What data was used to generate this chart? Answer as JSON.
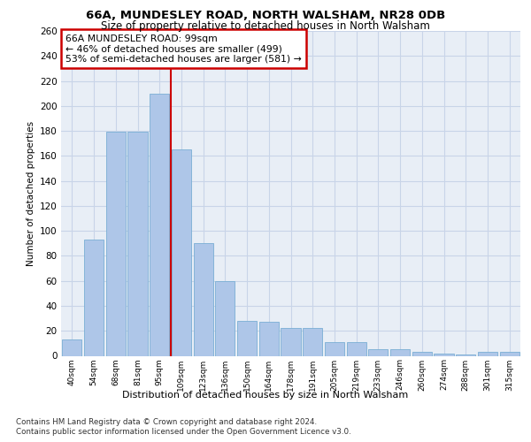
{
  "title1": "66A, MUNDESLEY ROAD, NORTH WALSHAM, NR28 0DB",
  "title2": "Size of property relative to detached houses in North Walsham",
  "xlabel": "Distribution of detached houses by size in North Walsham",
  "ylabel": "Number of detached properties",
  "categories": [
    "40sqm",
    "54sqm",
    "68sqm",
    "81sqm",
    "95sqm",
    "109sqm",
    "123sqm",
    "136sqm",
    "150sqm",
    "164sqm",
    "178sqm",
    "191sqm",
    "205sqm",
    "219sqm",
    "233sqm",
    "246sqm",
    "260sqm",
    "274sqm",
    "288sqm",
    "301sqm",
    "315sqm"
  ],
  "values": [
    13,
    93,
    179,
    179,
    210,
    165,
    90,
    60,
    28,
    27,
    22,
    22,
    11,
    11,
    5,
    5,
    3,
    2,
    1,
    3,
    3
  ],
  "bar_color": "#aec6e8",
  "bar_edgecolor": "#7aafd4",
  "vline_x": 4.5,
  "vline_color": "#cc0000",
  "annotation_text": "66A MUNDESLEY ROAD: 99sqm\n← 46% of detached houses are smaller (499)\n53% of semi-detached houses are larger (581) →",
  "annotation_box_color": "#ffffff",
  "annotation_box_edgecolor": "#cc0000",
  "ylim": [
    0,
    260
  ],
  "yticks": [
    0,
    20,
    40,
    60,
    80,
    100,
    120,
    140,
    160,
    180,
    200,
    220,
    240,
    260
  ],
  "footer1": "Contains HM Land Registry data © Crown copyright and database right 2024.",
  "footer2": "Contains public sector information licensed under the Open Government Licence v3.0.",
  "bg_color": "#e8eef6",
  "grid_color": "#c8d4e8"
}
